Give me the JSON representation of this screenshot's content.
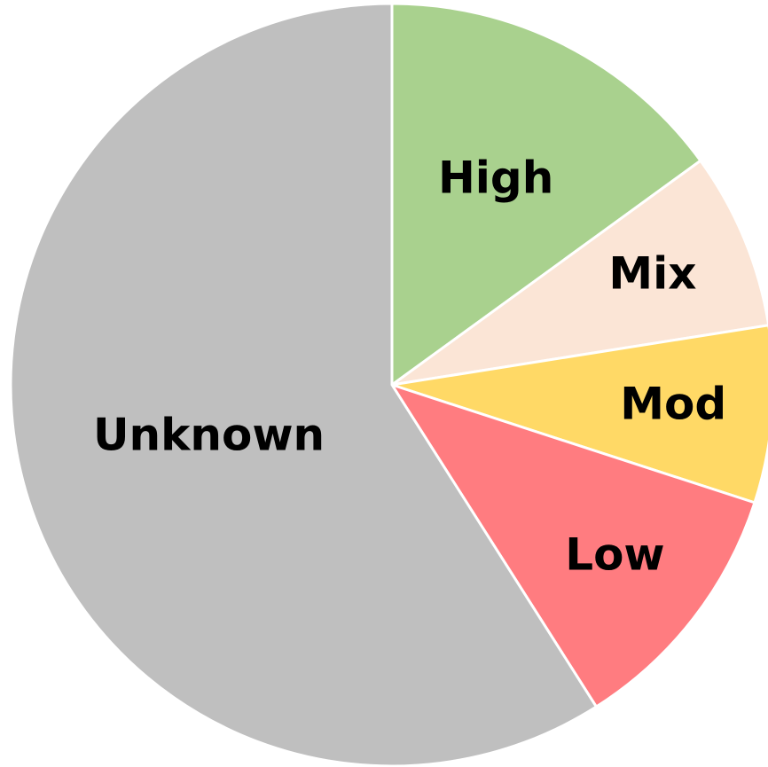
{
  "chart_data": {
    "type": "pie",
    "categories": [
      "High",
      "Mix",
      "Mod",
      "Low",
      "Unknown"
    ],
    "values": [
      15,
      7.5,
      7.5,
      11,
      59
    ],
    "colors": [
      "#a9d18e",
      "#fbe5d6",
      "#ffd966",
      "#ff7c80",
      "#bfbfbf"
    ]
  }
}
